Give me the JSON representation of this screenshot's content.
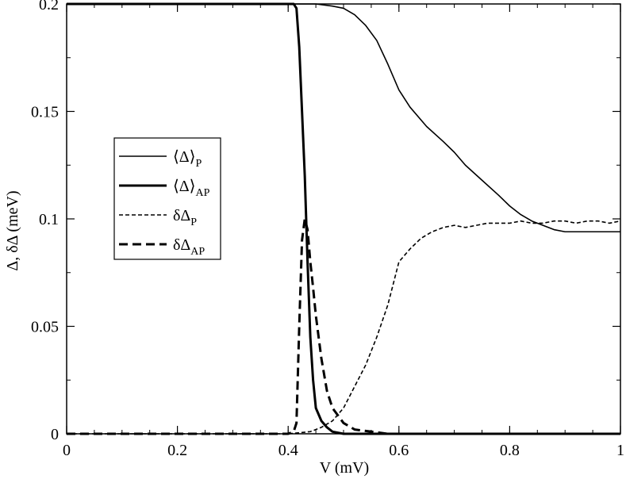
{
  "chart_data": {
    "type": "line",
    "title": "",
    "xlabel": "V (mV)",
    "ylabel": "Δ, δΔ (meV)",
    "xlim": [
      0,
      1
    ],
    "ylim": [
      0,
      0.2
    ],
    "x_ticks": [
      0,
      0.2,
      0.4,
      0.6,
      0.8,
      1
    ],
    "x_tick_labels": [
      "0",
      "0.2",
      "0.4",
      "0.6",
      "0.8",
      "1"
    ],
    "y_ticks": [
      0,
      0.05,
      0.1,
      0.15,
      0.2
    ],
    "y_tick_labels": [
      "0",
      "0.05",
      "0.1",
      "0.15",
      "0.2"
    ],
    "grid": false,
    "legend_position": "middle-left",
    "series": [
      {
        "key": "mean_p",
        "legend_main": "⟨Δ⟩",
        "legend_sub": "P",
        "style": "solid-thin",
        "color": "#000000",
        "points": [
          [
            0,
            0.2
          ],
          [
            0.2,
            0.2
          ],
          [
            0.4,
            0.2
          ],
          [
            0.45,
            0.2
          ],
          [
            0.48,
            0.199
          ],
          [
            0.5,
            0.198
          ],
          [
            0.52,
            0.195
          ],
          [
            0.54,
            0.19
          ],
          [
            0.56,
            0.183
          ],
          [
            0.58,
            0.172
          ],
          [
            0.6,
            0.16
          ],
          [
            0.62,
            0.152
          ],
          [
            0.65,
            0.143
          ],
          [
            0.68,
            0.136
          ],
          [
            0.7,
            0.131
          ],
          [
            0.72,
            0.125
          ],
          [
            0.75,
            0.118
          ],
          [
            0.78,
            0.111
          ],
          [
            0.8,
            0.106
          ],
          [
            0.82,
            0.102
          ],
          [
            0.84,
            0.099
          ],
          [
            0.86,
            0.097
          ],
          [
            0.88,
            0.095
          ],
          [
            0.9,
            0.094
          ],
          [
            0.93,
            0.094
          ],
          [
            0.96,
            0.094
          ],
          [
            1,
            0.094
          ]
        ]
      },
      {
        "key": "mean_ap",
        "legend_main": "⟨Δ⟩",
        "legend_sub": "AP",
        "style": "solid-thick",
        "color": "#000000",
        "points": [
          [
            0,
            0.2
          ],
          [
            0.2,
            0.2
          ],
          [
            0.4,
            0.2
          ],
          [
            0.41,
            0.2
          ],
          [
            0.415,
            0.198
          ],
          [
            0.42,
            0.18
          ],
          [
            0.425,
            0.15
          ],
          [
            0.43,
            0.12
          ],
          [
            0.435,
            0.08
          ],
          [
            0.44,
            0.045
          ],
          [
            0.445,
            0.025
          ],
          [
            0.45,
            0.012
          ],
          [
            0.46,
            0.006
          ],
          [
            0.47,
            0.003
          ],
          [
            0.48,
            0.001
          ],
          [
            0.5,
            0
          ],
          [
            0.6,
            0
          ],
          [
            0.8,
            0
          ],
          [
            1,
            0
          ]
        ]
      },
      {
        "key": "delta_p",
        "legend_main": "δΔ",
        "legend_sub": "P",
        "style": "dashed-thin",
        "color": "#000000",
        "points": [
          [
            0,
            0
          ],
          [
            0.2,
            0
          ],
          [
            0.4,
            0
          ],
          [
            0.44,
            0.001
          ],
          [
            0.46,
            0.003
          ],
          [
            0.48,
            0.006
          ],
          [
            0.5,
            0.012
          ],
          [
            0.52,
            0.022
          ],
          [
            0.54,
            0.032
          ],
          [
            0.56,
            0.045
          ],
          [
            0.58,
            0.06
          ],
          [
            0.6,
            0.08
          ],
          [
            0.62,
            0.086
          ],
          [
            0.64,
            0.091
          ],
          [
            0.66,
            0.094
          ],
          [
            0.68,
            0.096
          ],
          [
            0.7,
            0.097
          ],
          [
            0.72,
            0.096
          ],
          [
            0.74,
            0.097
          ],
          [
            0.76,
            0.098
          ],
          [
            0.78,
            0.098
          ],
          [
            0.8,
            0.098
          ],
          [
            0.82,
            0.099
          ],
          [
            0.84,
            0.098
          ],
          [
            0.86,
            0.098
          ],
          [
            0.88,
            0.099
          ],
          [
            0.9,
            0.099
          ],
          [
            0.92,
            0.098
          ],
          [
            0.94,
            0.099
          ],
          [
            0.96,
            0.099
          ],
          [
            0.98,
            0.098
          ],
          [
            1,
            0.099
          ]
        ]
      },
      {
        "key": "delta_ap",
        "legend_main": "δΔ",
        "legend_sub": "AP",
        "style": "dashed-thick",
        "color": "#000000",
        "points": [
          [
            0,
            0
          ],
          [
            0.2,
            0
          ],
          [
            0.4,
            0
          ],
          [
            0.41,
            0.001
          ],
          [
            0.415,
            0.005
          ],
          [
            0.42,
            0.05
          ],
          [
            0.425,
            0.09
          ],
          [
            0.43,
            0.1
          ],
          [
            0.435,
            0.095
          ],
          [
            0.44,
            0.08
          ],
          [
            0.445,
            0.068
          ],
          [
            0.45,
            0.055
          ],
          [
            0.46,
            0.035
          ],
          [
            0.47,
            0.02
          ],
          [
            0.48,
            0.012
          ],
          [
            0.5,
            0.005
          ],
          [
            0.52,
            0.002
          ],
          [
            0.55,
            0.001
          ],
          [
            0.58,
            0
          ],
          [
            0.7,
            0
          ],
          [
            1,
            0
          ]
        ]
      }
    ]
  }
}
